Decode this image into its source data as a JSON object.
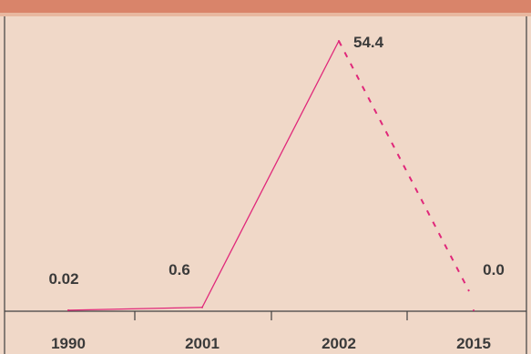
{
  "colors": {
    "background": "#f0d8c8",
    "top_band": "#d9846a",
    "line": "#e0287a",
    "axis": "#404040",
    "text": "#3a3a3a"
  },
  "chart_data": {
    "type": "line",
    "categories": [
      "1990",
      "2001",
      "2002",
      "2015"
    ],
    "values": [
      0.02,
      0.6,
      54.4,
      0.0
    ],
    "data_labels": [
      "0.02",
      "0.6",
      "54.4",
      "0.0"
    ],
    "segment_styles": [
      "solid",
      "solid",
      "dashed"
    ],
    "title": "",
    "xlabel": "",
    "ylabel": "",
    "ylim": [
      0,
      54.4
    ],
    "grid": false,
    "legend": "none"
  }
}
